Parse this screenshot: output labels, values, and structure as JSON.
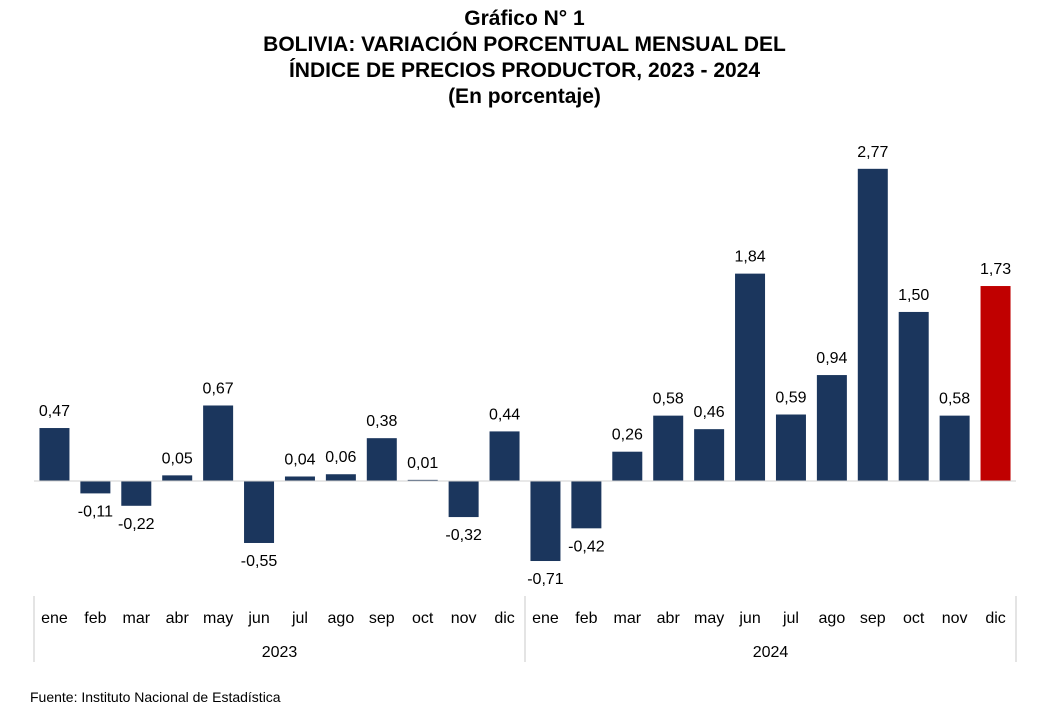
{
  "titles": {
    "line1": "Gráfico N° 1",
    "line2": "BOLIVIA: VARIACIÓN PORCENTUAL MENSUAL DEL",
    "line3": "ÍNDICE DE PRECIOS PRODUCTOR, 2023 - 2024",
    "line4": "(En porcentaje)"
  },
  "source": "Fuente: Instituto Nacional de Estadística",
  "chart_data": {
    "type": "bar",
    "title": "BOLIVIA: VARIACIÓN PORCENTUAL MENSUAL DEL ÍNDICE DE PRECIOS PRODUCTOR, 2023 - 2024",
    "ylabel": "",
    "xlabel": "",
    "groups": [
      {
        "label": "2023",
        "count": 12
      },
      {
        "label": "2024",
        "count": 12
      }
    ],
    "categories": [
      "ene",
      "feb",
      "mar",
      "abr",
      "may",
      "jun",
      "jul",
      "ago",
      "sep",
      "oct",
      "nov",
      "dic",
      "ene",
      "feb",
      "mar",
      "abr",
      "may",
      "jun",
      "jul",
      "ago",
      "sep",
      "oct",
      "nov",
      "dic"
    ],
    "values": [
      0.47,
      -0.11,
      -0.22,
      0.05,
      0.67,
      -0.55,
      0.04,
      0.06,
      0.38,
      0.01,
      -0.32,
      0.44,
      -0.71,
      -0.42,
      0.26,
      0.58,
      0.46,
      1.84,
      0.59,
      0.94,
      2.77,
      1.5,
      0.58,
      1.73
    ],
    "value_labels": [
      "0,47",
      "-0,11",
      "-0,22",
      "0,05",
      "0,67",
      "-0,55",
      "0,04",
      "0,06",
      "0,38",
      "0,01",
      "-0,32",
      "0,44",
      "-0,71",
      "-0,42",
      "0,26",
      "0,58",
      "0,46",
      "1,84",
      "0,59",
      "0,94",
      "2,77",
      "1,50",
      "0,58",
      "1,73"
    ],
    "colors": {
      "default": "#1b365d",
      "highlight": "#c00000"
    },
    "highlight_index": 23,
    "ylim": [
      -0.71,
      2.77
    ],
    "grid": false,
    "legend": "none"
  }
}
